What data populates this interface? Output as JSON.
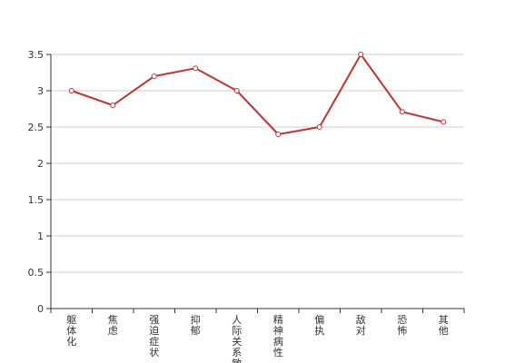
{
  "chart_data": {
    "type": "line",
    "categories": [
      "躯体化",
      "焦虑",
      "强迫症状",
      "抑郁",
      "人际关系敏感",
      "精神病性",
      "偏执",
      "敌对",
      "恐怖",
      "其他"
    ],
    "series": [
      {
        "values": [
          3.0,
          2.8,
          3.2,
          3.31,
          3.0,
          2.4,
          2.5,
          3.5,
          2.71,
          2.57
        ]
      }
    ],
    "y_ticks": [
      "0",
      "0.5",
      "1",
      "1.5",
      "2",
      "2.5",
      "3",
      "3.5"
    ],
    "ylim": [
      0,
      3.5
    ],
    "grid": true,
    "colors": {
      "line": "#c23531",
      "grid": "#cccccc",
      "axis": "#333333",
      "marker_fill": "#ffffff"
    }
  }
}
